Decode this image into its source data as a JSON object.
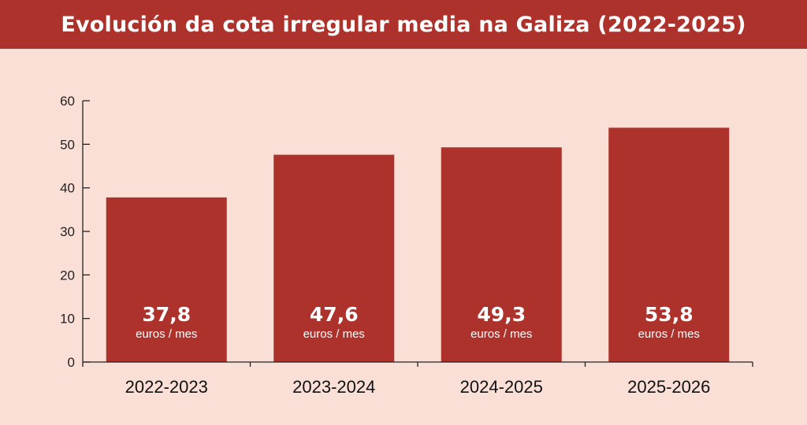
{
  "title": "Evolución da cota irregular media na Galiza (2022-2025)",
  "colors": {
    "accent": "#ad322c",
    "background": "#f9dfd6",
    "axis": "#222222"
  },
  "chart_data": {
    "type": "bar",
    "title": "Evolución da cota irregular media na Galiza (2022-2025)",
    "categories": [
      "2022-2023",
      "2023-2024",
      "2024-2025",
      "2025-2026"
    ],
    "values": [
      37.8,
      47.6,
      49.3,
      53.8
    ],
    "value_labels": [
      "37,8",
      "47,6",
      "49,3",
      "53,8"
    ],
    "unit_label": "euros / mes",
    "ylim": [
      0,
      60
    ],
    "yticks": [
      0,
      10,
      20,
      30,
      40,
      50,
      60
    ],
    "xlabel": "",
    "ylabel": "",
    "grid": false,
    "legend": "none"
  }
}
